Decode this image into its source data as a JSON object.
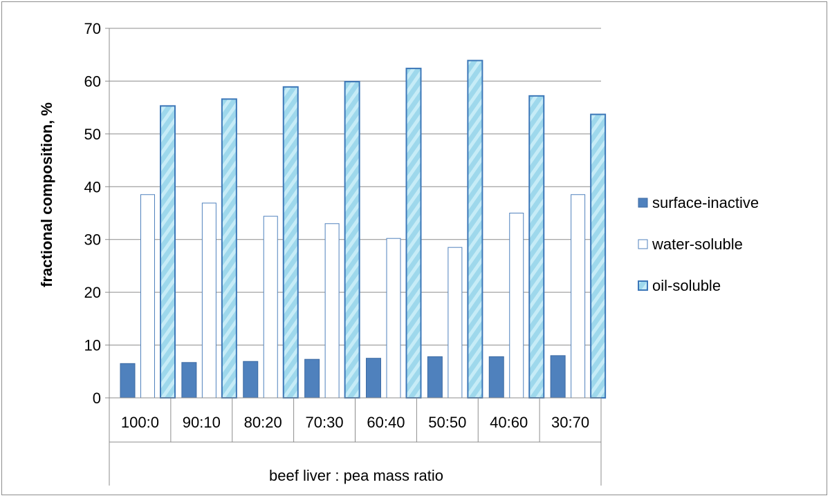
{
  "chart_data": {
    "type": "bar",
    "title": "",
    "xlabel": "beef liver : pea mass ratio",
    "ylabel": "fractional composition, %",
    "categories": [
      "100:0",
      "90:10",
      "80:20",
      "70:30",
      "60:40",
      "50:50",
      "40:60",
      "30:70"
    ],
    "series": [
      {
        "name": "surface-inactive",
        "values": [
          6.5,
          6.7,
          6.9,
          7.3,
          7.5,
          7.8,
          7.8,
          8.0
        ],
        "color": "#4f81bd",
        "style": "solid"
      },
      {
        "name": "water-soluble",
        "values": [
          38.5,
          36.9,
          34.4,
          33.0,
          30.2,
          28.5,
          35.0,
          38.5
        ],
        "color": "#4f81bd",
        "style": "outline"
      },
      {
        "name": "oil-soluble",
        "values": [
          55.3,
          56.6,
          58.9,
          59.9,
          62.4,
          63.9,
          57.2,
          53.7
        ],
        "color": "#9ed8ec",
        "style": "pattern"
      }
    ],
    "ylim": [
      0,
      70
    ],
    "yticks": [
      0,
      10,
      20,
      30,
      40,
      50,
      60,
      70
    ],
    "grid": true,
    "legend_position": "right"
  }
}
